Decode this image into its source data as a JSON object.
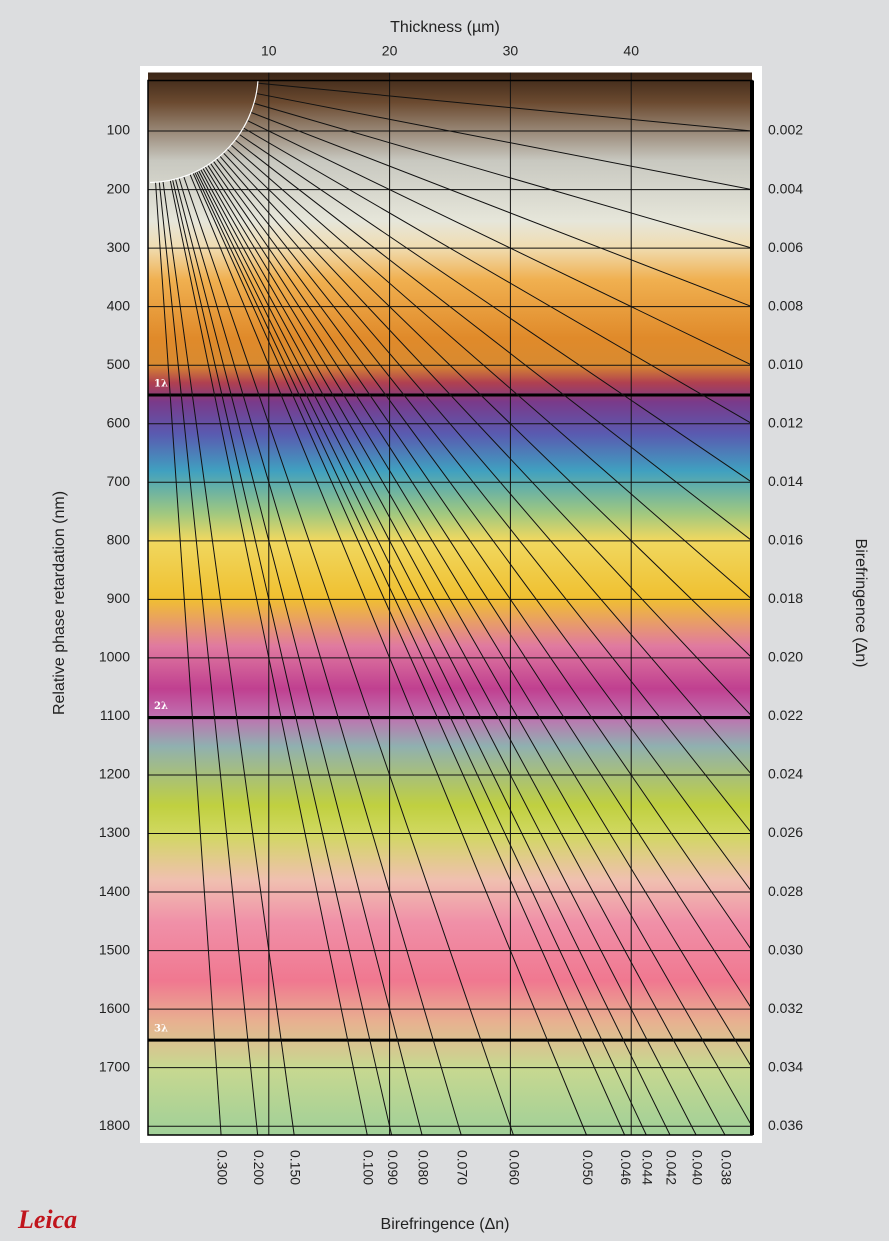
{
  "chart_data": {
    "type": "michel-levy",
    "title": "Thickness (µm)",
    "y_label": "Relative phase retardation (nm)",
    "y2_label": "Birefringence (Δn)",
    "bottom_label": "Birefringence (Δn)",
    "logo": "Leica",
    "xlim": [
      0,
      50
    ],
    "xticks": [
      10,
      20,
      30,
      40
    ],
    "ylim": [
      0,
      1815
    ],
    "yticks": [
      100,
      200,
      300,
      400,
      500,
      600,
      700,
      800,
      900,
      1000,
      1100,
      1200,
      1300,
      1400,
      1500,
      1600,
      1700,
      1800
    ],
    "y2ticks": [
      0.002,
      0.004,
      0.006,
      0.008,
      {
        "value": 0.01,
        "label": "0.010"
      },
      0.012,
      0.014,
      0.016,
      0.018,
      {
        "value": 0.02,
        "label": "0.020"
      },
      0.022,
      0.024,
      0.026,
      0.028,
      {
        "value": 0.03,
        "label": "0.030"
      },
      0.032,
      0.034,
      0.036
    ],
    "bottom_ticks": [
      {
        "value": 0.3,
        "label": "0.300"
      },
      {
        "value": 0.2,
        "label": "0.200"
      },
      {
        "value": 0.15,
        "label": "0.150"
      },
      {
        "value": 0.1,
        "label": "0.100"
      },
      {
        "value": 0.09,
        "label": "0.090"
      },
      {
        "value": 0.08,
        "label": "0.080"
      },
      {
        "value": 0.07,
        "label": "0.070"
      },
      {
        "value": 0.06,
        "label": "0.060"
      },
      {
        "value": 0.05,
        "label": "0.050"
      },
      0.046,
      0.044,
      0.042,
      {
        "value": 0.04,
        "label": "0.040"
      },
      0.038
    ],
    "orders": [
      {
        "label": "1λ",
        "value": 551
      },
      {
        "label": "2λ",
        "value": 1102
      },
      {
        "label": "3λ",
        "value": 1653
      }
    ],
    "grid": true
  }
}
